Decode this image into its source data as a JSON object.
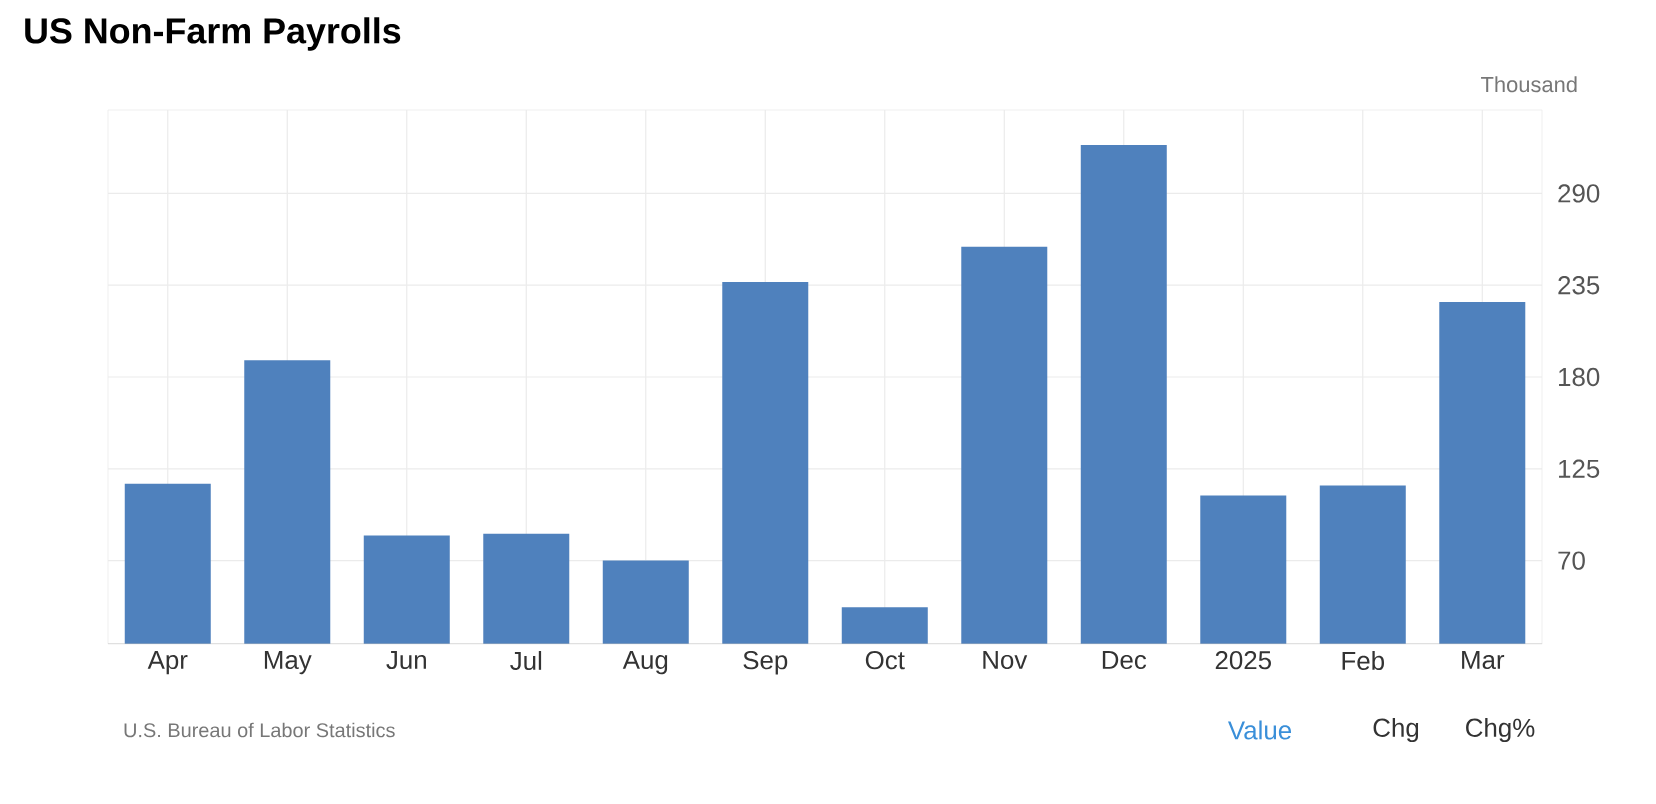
{
  "chart_data": {
    "type": "bar",
    "title": "US Non-Farm Payrolls",
    "ylabel": "Thousand",
    "categories": [
      "Apr",
      "May",
      "Jun",
      "Jul",
      "Aug",
      "Sep",
      "Oct",
      "Nov",
      "Dec",
      "2025",
      "Feb",
      "Mar"
    ],
    "values": [
      116,
      190,
      85,
      86,
      70,
      237,
      42,
      258,
      319,
      109,
      115,
      225
    ],
    "color": "#4f81bd",
    "ylim": [
      20,
      340
    ],
    "yticks": [
      70,
      125,
      180,
      235,
      290
    ],
    "grid": true,
    "annotations": [
      "U.S. Bureau of Labor Statistics",
      "Value",
      "Chg",
      "Chg%"
    ]
  }
}
